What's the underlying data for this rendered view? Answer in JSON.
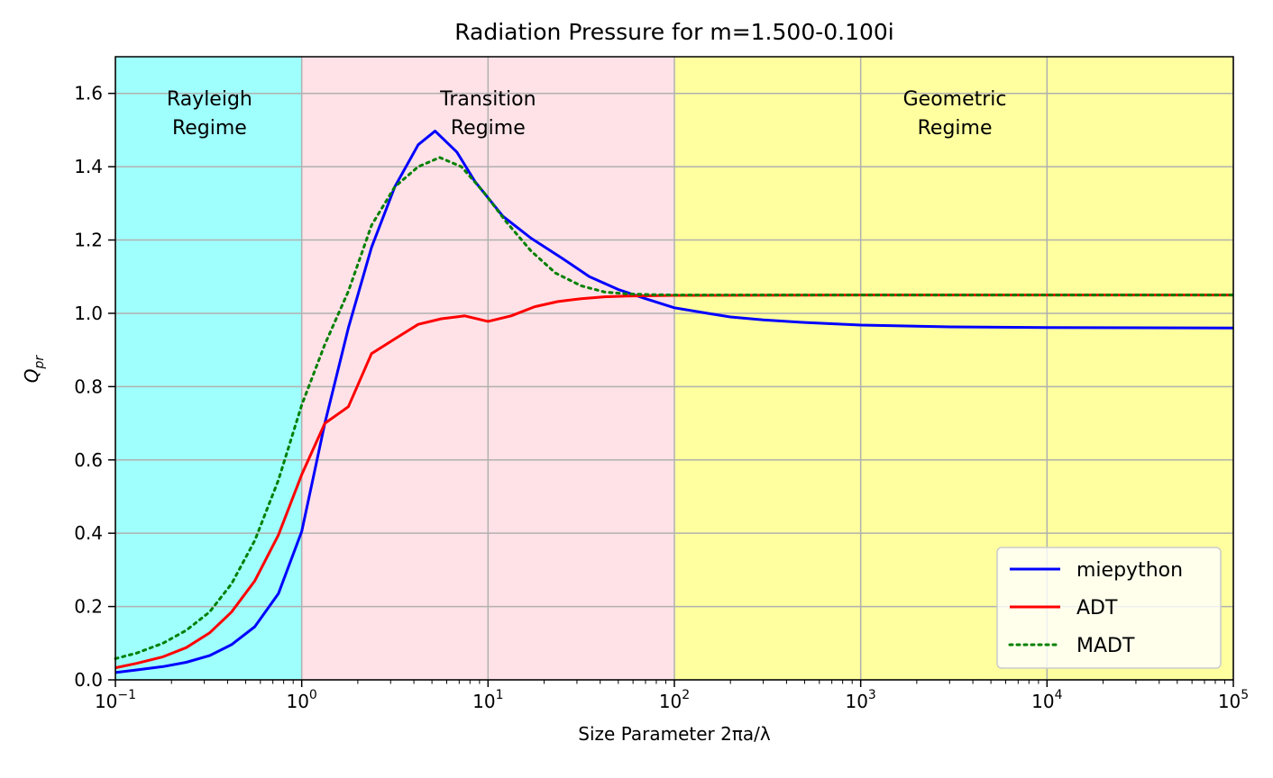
{
  "chart_data": {
    "type": "line",
    "title": "Radiation Pressure for m=1.500-0.100i",
    "xlabel": "Size Parameter 2πa/λ",
    "ylabel": "Q",
    "ylabel_sub": "pr",
    "x_scale": "log",
    "xlim": [
      0.1,
      100000
    ],
    "ylim": [
      0.0,
      1.7
    ],
    "grid": true,
    "legend_position": "lower-right",
    "x_ticks": [
      {
        "value": 0.1,
        "base": "10",
        "exp": "−1"
      },
      {
        "value": 1,
        "base": "10",
        "exp": "0"
      },
      {
        "value": 10,
        "base": "10",
        "exp": "1"
      },
      {
        "value": 100,
        "base": "10",
        "exp": "2"
      },
      {
        "value": 1000,
        "base": "10",
        "exp": "3"
      },
      {
        "value": 10000,
        "base": "10",
        "exp": "4"
      },
      {
        "value": 100000,
        "base": "10",
        "exp": "5"
      }
    ],
    "y_ticks": [
      "0.0",
      "0.2",
      "0.4",
      "0.6",
      "0.8",
      "1.0",
      "1.2",
      "1.4",
      "1.6"
    ],
    "regions": [
      {
        "x_start": 0.1,
        "x_end": 1,
        "color": "#9ffffd",
        "label_lines": [
          "Rayleigh",
          "Regime"
        ],
        "label_x": 0.32
      },
      {
        "x_start": 1,
        "x_end": 100,
        "color": "#ffe2e7",
        "label_lines": [
          "Transition",
          "Regime"
        ],
        "label_x": 10
      },
      {
        "x_start": 100,
        "x_end": 100000,
        "color": "#ffff9f",
        "label_lines": [
          "Geometric",
          "Regime"
        ],
        "label_x": 3200
      }
    ],
    "series": [
      {
        "name": "miepython",
        "color": "#0000ff",
        "style": "solid",
        "points": [
          [
            0.1,
            0.02
          ],
          [
            0.13,
            0.027
          ],
          [
            0.18,
            0.036
          ],
          [
            0.24,
            0.048
          ],
          [
            0.32,
            0.066
          ],
          [
            0.42,
            0.096
          ],
          [
            0.56,
            0.145
          ],
          [
            0.75,
            0.235
          ],
          [
            1.0,
            0.405
          ],
          [
            1.33,
            0.7
          ],
          [
            1.78,
            0.96
          ],
          [
            2.37,
            1.18
          ],
          [
            3.16,
            1.345
          ],
          [
            4.22,
            1.46
          ],
          [
            5.2,
            1.497
          ],
          [
            6.8,
            1.44
          ],
          [
            8.5,
            1.36
          ],
          [
            12,
            1.265
          ],
          [
            17,
            1.205
          ],
          [
            25,
            1.15
          ],
          [
            35,
            1.1
          ],
          [
            50,
            1.065
          ],
          [
            70,
            1.04
          ],
          [
            100,
            1.015
          ],
          [
            150,
            1.0
          ],
          [
            200,
            0.99
          ],
          [
            300,
            0.982
          ],
          [
            500,
            0.975
          ],
          [
            1000,
            0.968
          ],
          [
            3000,
            0.963
          ],
          [
            10000,
            0.961
          ],
          [
            100000,
            0.96
          ]
        ]
      },
      {
        "name": "ADT",
        "color": "#ff0000",
        "style": "solid",
        "points": [
          [
            0.1,
            0.033
          ],
          [
            0.13,
            0.045
          ],
          [
            0.18,
            0.063
          ],
          [
            0.24,
            0.088
          ],
          [
            0.32,
            0.128
          ],
          [
            0.42,
            0.185
          ],
          [
            0.56,
            0.27
          ],
          [
            0.75,
            0.395
          ],
          [
            1.0,
            0.56
          ],
          [
            1.33,
            0.7
          ],
          [
            1.78,
            0.745
          ],
          [
            2.37,
            0.89
          ],
          [
            3.16,
            0.93
          ],
          [
            4.22,
            0.97
          ],
          [
            5.62,
            0.985
          ],
          [
            7.5,
            0.993
          ],
          [
            10,
            0.978
          ],
          [
            13.3,
            0.993
          ],
          [
            17.8,
            1.018
          ],
          [
            23.7,
            1.032
          ],
          [
            31.6,
            1.04
          ],
          [
            42.2,
            1.045
          ],
          [
            56,
            1.047
          ],
          [
            75,
            1.048
          ],
          [
            100,
            1.049
          ],
          [
            1000,
            1.05
          ],
          [
            100000,
            1.05
          ]
        ]
      },
      {
        "name": "MADT",
        "color": "#008000",
        "style": "dotted",
        "points": [
          [
            0.1,
            0.058
          ],
          [
            0.13,
            0.073
          ],
          [
            0.18,
            0.1
          ],
          [
            0.24,
            0.135
          ],
          [
            0.32,
            0.185
          ],
          [
            0.42,
            0.262
          ],
          [
            0.56,
            0.38
          ],
          [
            0.75,
            0.545
          ],
          [
            1.0,
            0.75
          ],
          [
            1.33,
            0.915
          ],
          [
            1.78,
            1.06
          ],
          [
            2.37,
            1.24
          ],
          [
            3.16,
            1.345
          ],
          [
            4.22,
            1.4
          ],
          [
            5.5,
            1.425
          ],
          [
            7.2,
            1.4
          ],
          [
            9.5,
            1.33
          ],
          [
            12.5,
            1.25
          ],
          [
            17,
            1.17
          ],
          [
            23,
            1.11
          ],
          [
            31.6,
            1.075
          ],
          [
            42.2,
            1.058
          ],
          [
            56,
            1.053
          ],
          [
            75,
            1.051
          ],
          [
            100,
            1.05
          ],
          [
            1000,
            1.05
          ],
          [
            100000,
            1.05
          ]
        ]
      }
    ]
  }
}
